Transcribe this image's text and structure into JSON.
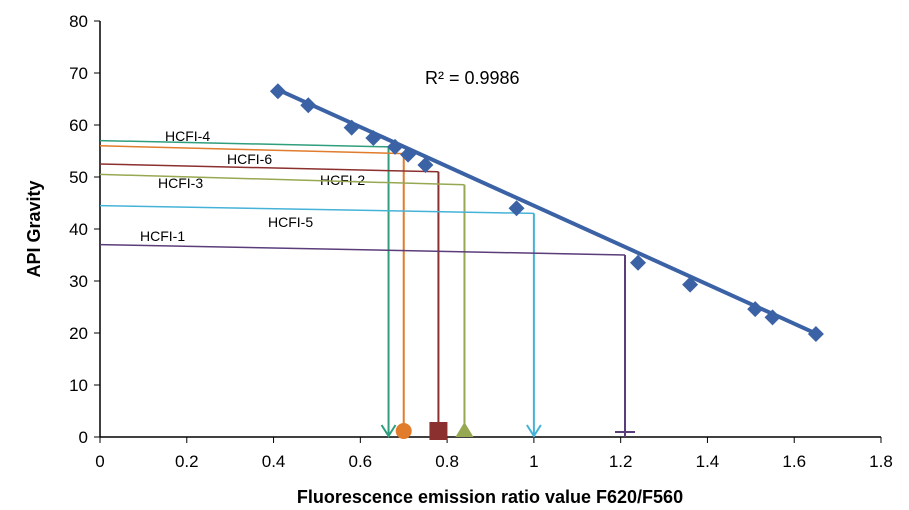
{
  "chart_data": {
    "type": "scatter",
    "x_label": "Fluorescence emission ratio value F620/F560",
    "y_label": "API Gravity",
    "annotation": "R² = 0.9986",
    "xlim": [
      0,
      1.8
    ],
    "ylim": [
      0,
      80
    ],
    "xticks": [
      0,
      0.2,
      0.4,
      0.6,
      0.8,
      1,
      1.2,
      1.4,
      1.6,
      1.8
    ],
    "yticks": [
      0,
      10,
      20,
      30,
      40,
      50,
      60,
      70,
      80
    ],
    "color": "#3c62a6",
    "x": [
      0.41,
      0.48,
      0.58,
      0.63,
      0.68,
      0.71,
      0.75,
      0.96,
      1.24,
      1.36,
      1.51,
      1.55,
      1.65
    ],
    "values": [
      66.5,
      63.8,
      59.5,
      57.5,
      55.8,
      54.3,
      52.3,
      44,
      33.5,
      29.3,
      24.6,
      23,
      19.8
    ],
    "trendline": {
      "x": [
        0.41,
        1.65
      ],
      "values": [
        66.8,
        19.9
      ]
    },
    "samples": [
      {
        "name": "HCFI-4",
        "color": "#2f9e7c",
        "marker": "check",
        "y_start": 57,
        "y": 55.8,
        "x": 0.665
      },
      {
        "name": "HCFI-6",
        "color": "#e07c2c",
        "marker": "circle",
        "y_start": 56,
        "y": 54.5,
        "x": 0.7
      },
      {
        "name": "HCFI-2",
        "color": "#8c2f2f",
        "marker": "square",
        "y_start": 52.5,
        "y": 51,
        "x": 0.78
      },
      {
        "name": "HCFI-3",
        "color": "#97a852",
        "marker": "triangle",
        "y_start": 50.5,
        "y": 48.5,
        "x": 0.84
      },
      {
        "name": "HCFI-5",
        "color": "#45b2d8",
        "marker": "check",
        "y_start": 44.5,
        "y": 43,
        "x": 1.0
      },
      {
        "name": "HCFI-1",
        "color": "#5b3d7a",
        "marker": "plus",
        "y_start": 37,
        "y": 35,
        "x": 1.21
      }
    ]
  }
}
